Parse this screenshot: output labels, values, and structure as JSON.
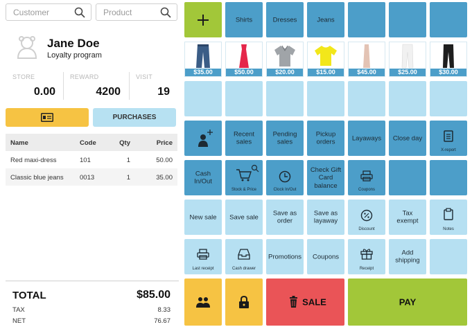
{
  "search": {
    "customer_placeholder": "Customer",
    "product_placeholder": "Product"
  },
  "customer": {
    "name": "Jane Doe",
    "program": "Loyalty program"
  },
  "stats": [
    {
      "label": "STORE",
      "value": "0.00"
    },
    {
      "label": "REWARD",
      "value": "4200"
    },
    {
      "label": "VISIT",
      "value": "19"
    }
  ],
  "buttons": {
    "purchases": "PURCHASES"
  },
  "table": {
    "headers": {
      "name": "Name",
      "code": "Code",
      "qty": "Qty",
      "price": "Price"
    },
    "rows": [
      {
        "name": "Red maxi-dress",
        "code": "101",
        "qty": "1",
        "price": "50.00"
      },
      {
        "name": "Classic blue jeans",
        "code": "0013",
        "qty": "1",
        "price": "35.00"
      }
    ]
  },
  "totals": {
    "total_label": "TOTAL",
    "total_value": "$85.00",
    "tax_label": "TAX",
    "tax_value": "8.33",
    "net_label": "NET",
    "net_value": "76.67"
  },
  "categories": [
    "Shirts",
    "Dresses",
    "Jeans"
  ],
  "products": [
    {
      "name": "jeans",
      "price": "$35.00",
      "color": "#3b5d86"
    },
    {
      "name": "red dress",
      "price": "$50.00",
      "color": "#e5264a"
    },
    {
      "name": "gray polo",
      "price": "$20.00",
      "color": "#a0a4a8"
    },
    {
      "name": "yellow tee",
      "price": "$15.00",
      "color": "#f2e71a"
    },
    {
      "name": "beige skirt",
      "price": "$45.00",
      "color": "#e3c3b4"
    },
    {
      "name": "white pants",
      "price": "$25.00",
      "color": "#f1f1f1"
    },
    {
      "name": "black pants",
      "price": "$30.00",
      "color": "#1e1e1e"
    }
  ],
  "actions": {
    "recent_sales": "Recent sales",
    "pending_sales": "Pending sales",
    "pickup_orders": "Pickup orders",
    "layaways": "Layaways",
    "close_day": "Close day",
    "x_report": "X-report",
    "cash_in_out": "Cash In/Out",
    "stock_price": "Stock & Price",
    "clock_in_out": "Clock In/Out",
    "check_gift_card": "Check Gift Card balance",
    "coupons_cap": "Coupons",
    "new_sale": "New sale",
    "save_sale": "Save sale",
    "save_as_order": "Save as order",
    "save_as_layaway": "Save as layaway",
    "discount": "Discount",
    "tax_exempt": "Tax exempt",
    "notes": "Notes",
    "last_receipt": "Last receipt",
    "cash_drawer": "Cash drawer",
    "promotions": "Promotions",
    "coupons": "Coupons",
    "receipt": "Receipt",
    "add_shipping": "Add shipping",
    "sale": "SALE",
    "pay": "PAY"
  },
  "colors": {
    "tile_blue": "#4c9ec9",
    "tile_light_blue": "#b6e0f2",
    "green": "#a2c739",
    "yellow": "#f6c343",
    "red": "#ea5457"
  }
}
